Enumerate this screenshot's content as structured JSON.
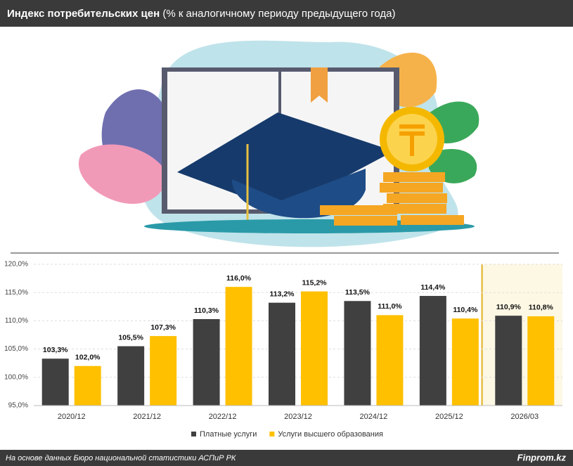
{
  "header": {
    "title": "Индекс потребительских цен",
    "subtitle": "(% к аналогичному периоду предыдущего года)"
  },
  "chart_data": {
    "type": "bar",
    "categories": [
      "2020/12",
      "2021/12",
      "2022/12",
      "2023/12",
      "2024/12",
      "2025/12",
      "2026/03"
    ],
    "series": [
      {
        "name": "Платные услуги",
        "color": "#404040",
        "values": [
          103.3,
          105.5,
          110.3,
          113.2,
          113.5,
          114.4,
          110.9
        ],
        "value_labels": [
          "103,3%",
          "105,5%",
          "110,3%",
          "113,2%",
          "113,5%",
          "114,4%",
          "110,9%"
        ]
      },
      {
        "name": "Услуги высшего образования",
        "color": "#ffc000",
        "values": [
          102.0,
          107.3,
          116.0,
          115.2,
          111.0,
          110.4,
          110.8
        ],
        "value_labels": [
          "102,0%",
          "107,3%",
          "116,0%",
          "115,2%",
          "111,0%",
          "110,4%",
          "110,8%"
        ]
      }
    ],
    "ylim": [
      95,
      120
    ],
    "yticks": [
      {
        "value": 95,
        "label": "95,0%"
      },
      {
        "value": 100,
        "label": "100,0%"
      },
      {
        "value": 105,
        "label": "105,0%"
      },
      {
        "value": 110,
        "label": "110,0%"
      },
      {
        "value": 115,
        "label": "115,0%"
      },
      {
        "value": 120,
        "label": "120,0%"
      }
    ],
    "grid": true,
    "legend": "bottom"
  },
  "footer": {
    "source": "На основе данных Бюро национальной статистики АСПиР РК",
    "brand": "Finprom.kz"
  }
}
